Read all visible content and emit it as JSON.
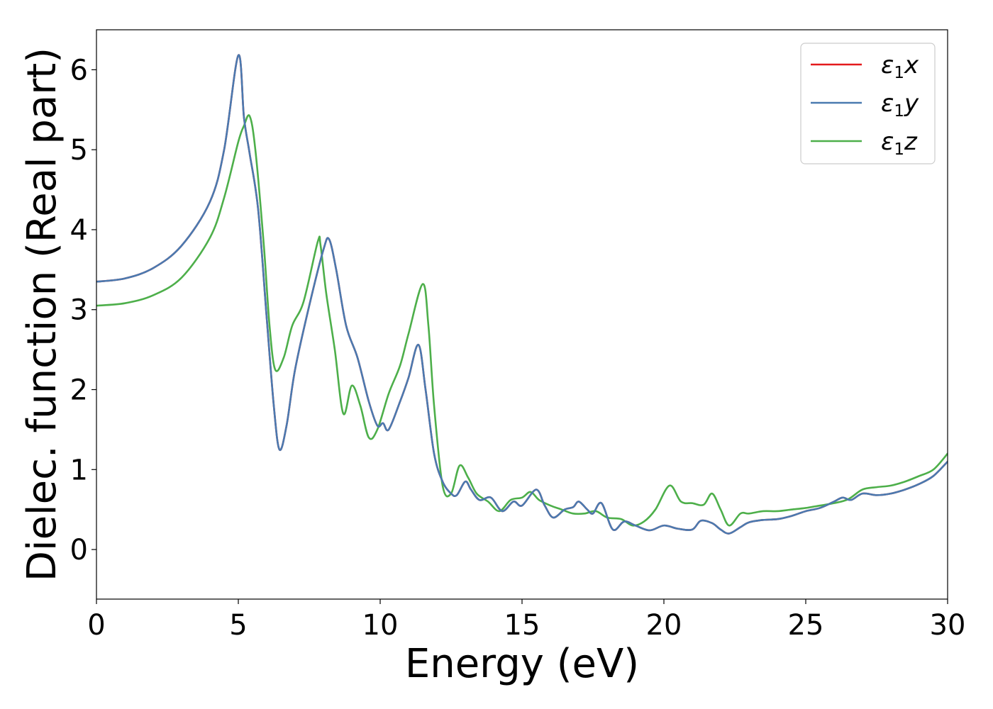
{
  "chart_data": {
    "type": "line",
    "title": "",
    "xlabel": "Energy (eV)",
    "ylabel": "Dielec. function (Real part)",
    "xlim": [
      0,
      30
    ],
    "ylim": [
      -0.62,
      6.5
    ],
    "xticks": [
      0,
      5,
      10,
      15,
      20,
      25,
      30
    ],
    "yticks": [
      0,
      1,
      2,
      3,
      4,
      5,
      6
    ],
    "grid": false,
    "legend_position": "upper-right",
    "series": [
      {
        "name": "ε1x",
        "legend_main": "ε",
        "legend_sub": "1",
        "legend_tail": "x",
        "color": "#e41a1c",
        "points": [
          [
            0,
            3.35
          ],
          [
            1,
            3.39
          ],
          [
            2,
            3.52
          ],
          [
            3,
            3.8
          ],
          [
            4,
            4.35
          ],
          [
            4.5,
            5.0
          ],
          [
            5.0,
            6.18
          ],
          [
            5.2,
            5.4
          ],
          [
            5.4,
            4.95
          ],
          [
            5.7,
            4.25
          ],
          [
            6.0,
            2.9
          ],
          [
            6.25,
            1.8
          ],
          [
            6.45,
            1.25
          ],
          [
            6.7,
            1.55
          ],
          [
            7.0,
            2.25
          ],
          [
            7.5,
            3.05
          ],
          [
            8.0,
            3.75
          ],
          [
            8.2,
            3.88
          ],
          [
            8.45,
            3.5
          ],
          [
            8.8,
            2.8
          ],
          [
            9.2,
            2.4
          ],
          [
            9.6,
            1.85
          ],
          [
            9.9,
            1.55
          ],
          [
            10.1,
            1.58
          ],
          [
            10.3,
            1.5
          ],
          [
            10.7,
            1.85
          ],
          [
            11.0,
            2.15
          ],
          [
            11.35,
            2.56
          ],
          [
            11.6,
            2.0
          ],
          [
            11.9,
            1.2
          ],
          [
            12.2,
            0.85
          ],
          [
            12.5,
            0.7
          ],
          [
            12.7,
            0.68
          ],
          [
            13.0,
            0.85
          ],
          [
            13.2,
            0.75
          ],
          [
            13.5,
            0.62
          ],
          [
            13.9,
            0.65
          ],
          [
            14.3,
            0.48
          ],
          [
            14.7,
            0.6
          ],
          [
            15.0,
            0.55
          ],
          [
            15.5,
            0.75
          ],
          [
            15.8,
            0.55
          ],
          [
            16.1,
            0.4
          ],
          [
            16.5,
            0.5
          ],
          [
            16.8,
            0.53
          ],
          [
            17.0,
            0.6
          ],
          [
            17.3,
            0.5
          ],
          [
            17.5,
            0.45
          ],
          [
            17.8,
            0.58
          ],
          [
            18.2,
            0.25
          ],
          [
            18.6,
            0.35
          ],
          [
            19.0,
            0.3
          ],
          [
            19.5,
            0.24
          ],
          [
            20.0,
            0.3
          ],
          [
            20.5,
            0.26
          ],
          [
            21.0,
            0.25
          ],
          [
            21.3,
            0.36
          ],
          [
            21.7,
            0.33
          ],
          [
            22.0,
            0.25
          ],
          [
            22.3,
            0.2
          ],
          [
            22.7,
            0.28
          ],
          [
            23.0,
            0.34
          ],
          [
            23.5,
            0.37
          ],
          [
            24.0,
            0.38
          ],
          [
            24.5,
            0.42
          ],
          [
            25.0,
            0.48
          ],
          [
            25.5,
            0.52
          ],
          [
            26.0,
            0.6
          ],
          [
            26.3,
            0.65
          ],
          [
            26.6,
            0.62
          ],
          [
            27.0,
            0.7
          ],
          [
            27.5,
            0.68
          ],
          [
            28.0,
            0.7
          ],
          [
            28.5,
            0.75
          ],
          [
            29.0,
            0.82
          ],
          [
            29.5,
            0.92
          ],
          [
            30.0,
            1.1
          ]
        ]
      },
      {
        "name": "ε1y",
        "legend_main": "ε",
        "legend_sub": "1",
        "legend_tail": "y",
        "color": "#4a7ab0",
        "points": [
          [
            0,
            3.35
          ],
          [
            1,
            3.39
          ],
          [
            2,
            3.52
          ],
          [
            3,
            3.8
          ],
          [
            4,
            4.35
          ],
          [
            4.5,
            5.0
          ],
          [
            5.0,
            6.18
          ],
          [
            5.2,
            5.4
          ],
          [
            5.4,
            4.95
          ],
          [
            5.7,
            4.25
          ],
          [
            6.0,
            2.9
          ],
          [
            6.25,
            1.8
          ],
          [
            6.45,
            1.25
          ],
          [
            6.7,
            1.55
          ],
          [
            7.0,
            2.25
          ],
          [
            7.5,
            3.05
          ],
          [
            8.0,
            3.75
          ],
          [
            8.2,
            3.88
          ],
          [
            8.45,
            3.5
          ],
          [
            8.8,
            2.8
          ],
          [
            9.2,
            2.4
          ],
          [
            9.6,
            1.85
          ],
          [
            9.9,
            1.55
          ],
          [
            10.1,
            1.58
          ],
          [
            10.3,
            1.5
          ],
          [
            10.7,
            1.85
          ],
          [
            11.0,
            2.15
          ],
          [
            11.35,
            2.56
          ],
          [
            11.6,
            2.0
          ],
          [
            11.9,
            1.2
          ],
          [
            12.2,
            0.85
          ],
          [
            12.5,
            0.7
          ],
          [
            12.7,
            0.68
          ],
          [
            13.0,
            0.85
          ],
          [
            13.2,
            0.75
          ],
          [
            13.5,
            0.62
          ],
          [
            13.9,
            0.65
          ],
          [
            14.3,
            0.48
          ],
          [
            14.7,
            0.6
          ],
          [
            15.0,
            0.55
          ],
          [
            15.5,
            0.75
          ],
          [
            15.8,
            0.55
          ],
          [
            16.1,
            0.4
          ],
          [
            16.5,
            0.5
          ],
          [
            16.8,
            0.53
          ],
          [
            17.0,
            0.6
          ],
          [
            17.3,
            0.5
          ],
          [
            17.5,
            0.45
          ],
          [
            17.8,
            0.58
          ],
          [
            18.2,
            0.25
          ],
          [
            18.6,
            0.35
          ],
          [
            19.0,
            0.3
          ],
          [
            19.5,
            0.24
          ],
          [
            20.0,
            0.3
          ],
          [
            20.5,
            0.26
          ],
          [
            21.0,
            0.25
          ],
          [
            21.3,
            0.36
          ],
          [
            21.7,
            0.33
          ],
          [
            22.0,
            0.25
          ],
          [
            22.3,
            0.2
          ],
          [
            22.7,
            0.28
          ],
          [
            23.0,
            0.34
          ],
          [
            23.5,
            0.37
          ],
          [
            24.0,
            0.38
          ],
          [
            24.5,
            0.42
          ],
          [
            25.0,
            0.48
          ],
          [
            25.5,
            0.52
          ],
          [
            26.0,
            0.6
          ],
          [
            26.3,
            0.65
          ],
          [
            26.6,
            0.62
          ],
          [
            27.0,
            0.7
          ],
          [
            27.5,
            0.68
          ],
          [
            28.0,
            0.7
          ],
          [
            28.5,
            0.75
          ],
          [
            29.0,
            0.82
          ],
          [
            29.5,
            0.92
          ],
          [
            30.0,
            1.1
          ]
        ]
      },
      {
        "name": "ε1z",
        "legend_main": "ε",
        "legend_sub": "1",
        "legend_tail": "z",
        "color": "#4daf4a",
        "points": [
          [
            0,
            3.05
          ],
          [
            1,
            3.08
          ],
          [
            2,
            3.18
          ],
          [
            3,
            3.4
          ],
          [
            4,
            3.9
          ],
          [
            4.5,
            4.4
          ],
          [
            5.0,
            5.1
          ],
          [
            5.2,
            5.3
          ],
          [
            5.4,
            5.42
          ],
          [
            5.6,
            5.0
          ],
          [
            5.9,
            3.8
          ],
          [
            6.1,
            2.8
          ],
          [
            6.3,
            2.25
          ],
          [
            6.6,
            2.4
          ],
          [
            6.9,
            2.8
          ],
          [
            7.3,
            3.1
          ],
          [
            7.8,
            3.85
          ],
          [
            7.9,
            3.8
          ],
          [
            8.1,
            3.2
          ],
          [
            8.4,
            2.5
          ],
          [
            8.7,
            1.7
          ],
          [
            9.0,
            2.05
          ],
          [
            9.3,
            1.8
          ],
          [
            9.6,
            1.4
          ],
          [
            9.9,
            1.5
          ],
          [
            10.3,
            1.95
          ],
          [
            10.7,
            2.3
          ],
          [
            11.0,
            2.7
          ],
          [
            11.5,
            3.32
          ],
          [
            11.7,
            2.8
          ],
          [
            11.9,
            1.8
          ],
          [
            12.2,
            0.8
          ],
          [
            12.5,
            0.7
          ],
          [
            12.8,
            1.05
          ],
          [
            13.1,
            0.9
          ],
          [
            13.4,
            0.7
          ],
          [
            13.8,
            0.6
          ],
          [
            14.2,
            0.48
          ],
          [
            14.6,
            0.62
          ],
          [
            15.0,
            0.65
          ],
          [
            15.3,
            0.72
          ],
          [
            15.6,
            0.62
          ],
          [
            16.0,
            0.55
          ],
          [
            16.4,
            0.5
          ],
          [
            16.8,
            0.45
          ],
          [
            17.2,
            0.45
          ],
          [
            17.6,
            0.48
          ],
          [
            18.0,
            0.4
          ],
          [
            18.5,
            0.38
          ],
          [
            18.9,
            0.3
          ],
          [
            19.3,
            0.35
          ],
          [
            19.7,
            0.5
          ],
          [
            20.2,
            0.8
          ],
          [
            20.6,
            0.6
          ],
          [
            21.0,
            0.58
          ],
          [
            21.4,
            0.56
          ],
          [
            21.7,
            0.7
          ],
          [
            22.0,
            0.5
          ],
          [
            22.3,
            0.3
          ],
          [
            22.7,
            0.45
          ],
          [
            23.0,
            0.45
          ],
          [
            23.5,
            0.48
          ],
          [
            24.0,
            0.48
          ],
          [
            24.5,
            0.5
          ],
          [
            25.0,
            0.52
          ],
          [
            25.5,
            0.55
          ],
          [
            26.0,
            0.58
          ],
          [
            26.5,
            0.63
          ],
          [
            27.0,
            0.75
          ],
          [
            27.5,
            0.78
          ],
          [
            28.0,
            0.8
          ],
          [
            28.5,
            0.85
          ],
          [
            29.0,
            0.92
          ],
          [
            29.5,
            1.0
          ],
          [
            30.0,
            1.2
          ]
        ]
      }
    ]
  }
}
